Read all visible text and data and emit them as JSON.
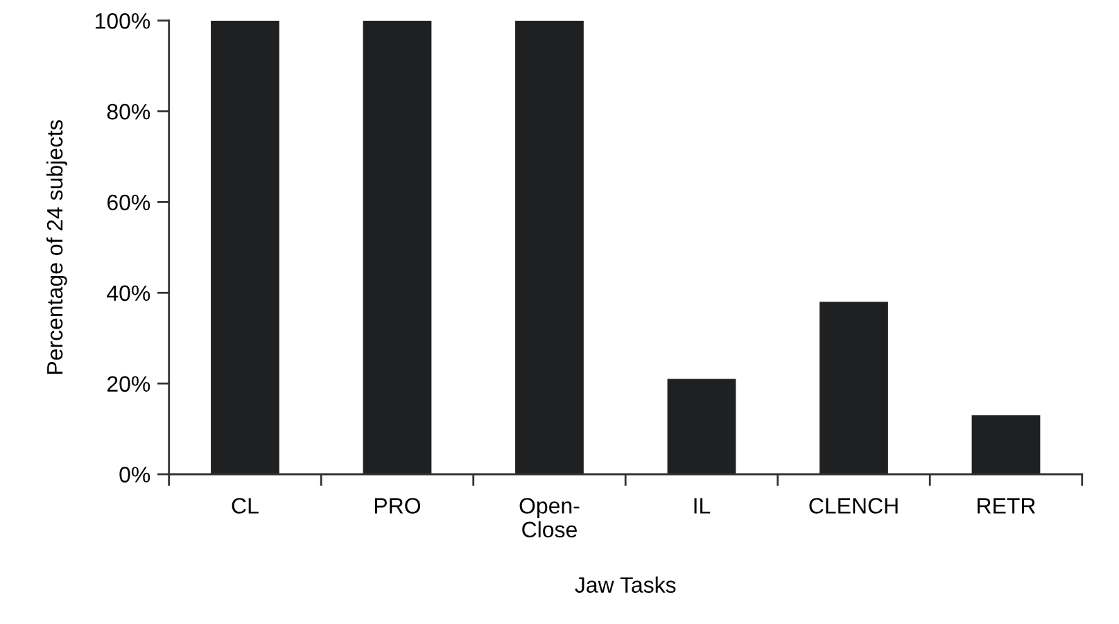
{
  "chart_data": {
    "type": "bar",
    "xlabel": "Jaw Tasks",
    "ylabel": "Percentage of 24 subjects",
    "categories": [
      "CL",
      "PRO",
      "Open-\nClose",
      "IL",
      "CLENCH",
      "RETR"
    ],
    "values": [
      100,
      100,
      100,
      21,
      38,
      13
    ],
    "color": "#1f2022",
    "ylim": [
      0,
      100
    ],
    "yticks": [
      {
        "value": 0,
        "label": "0%"
      },
      {
        "value": 20,
        "label": "20%"
      },
      {
        "value": 40,
        "label": "40%"
      },
      {
        "value": 60,
        "label": "60%"
      },
      {
        "value": 80,
        "label": "80%"
      },
      {
        "value": 100,
        "label": "100%"
      }
    ],
    "grid": false
  }
}
